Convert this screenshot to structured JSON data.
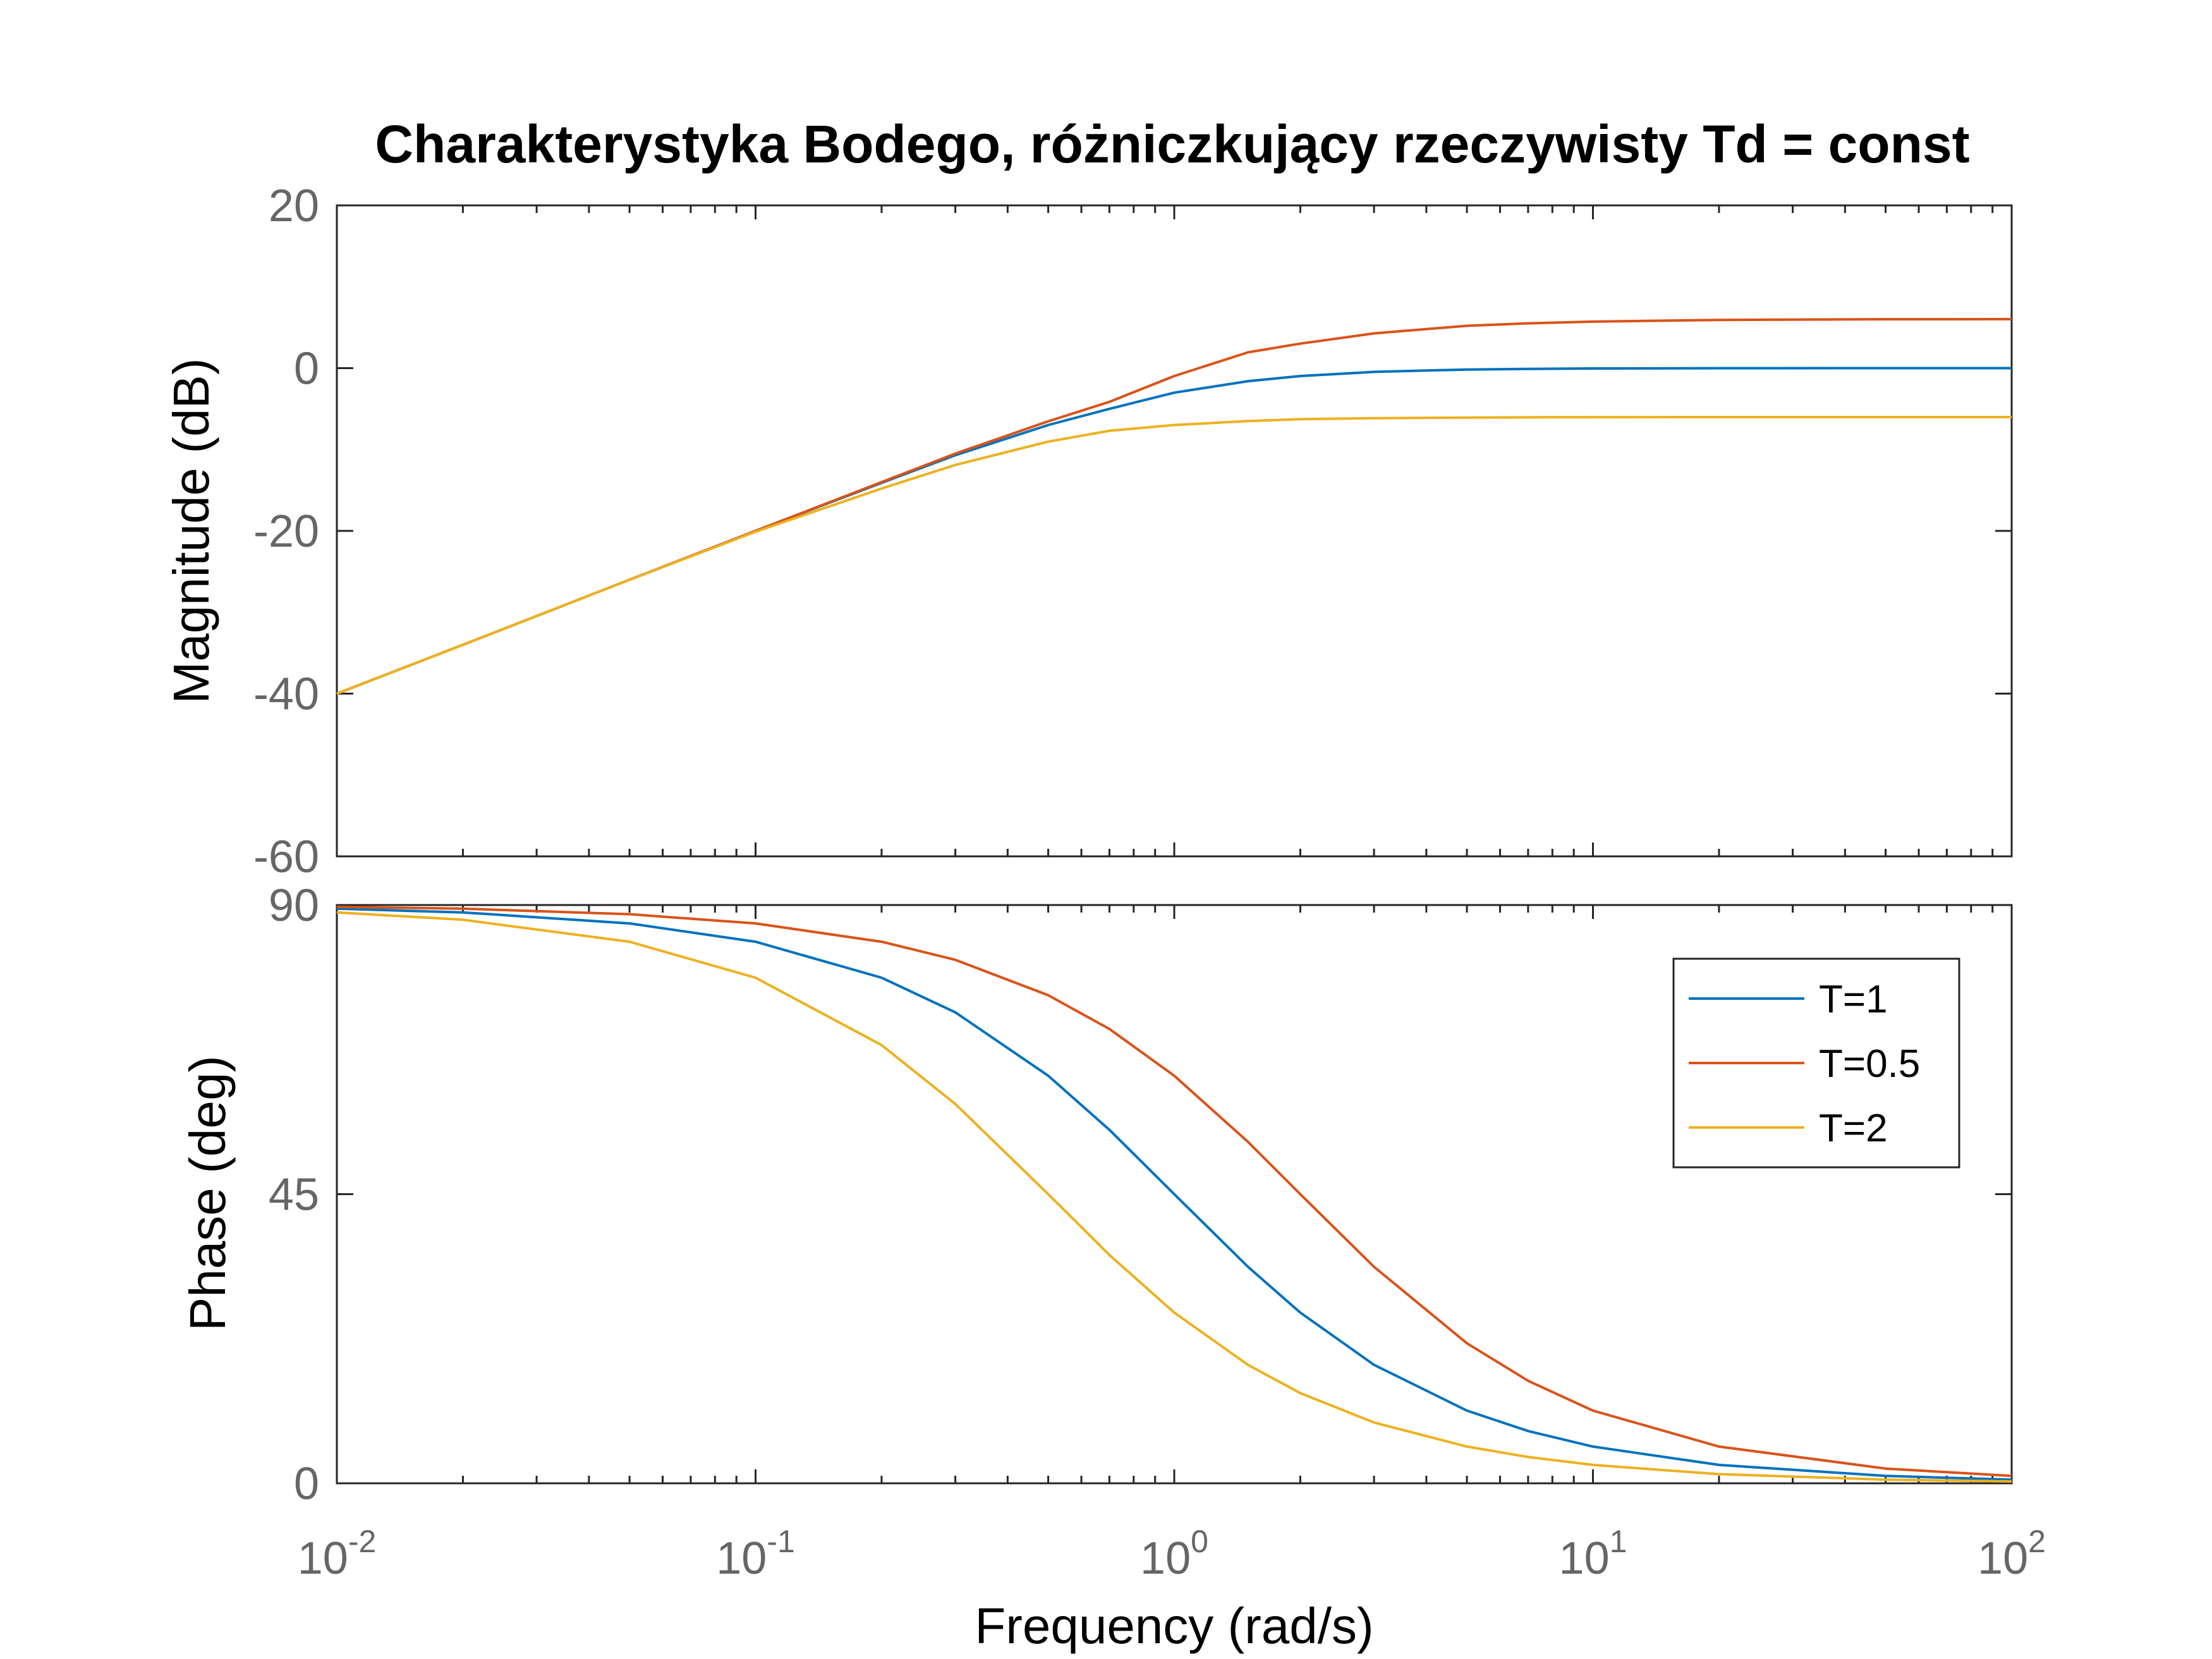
{
  "chart_data": {
    "type": "line",
    "title": "Charakterystyka Bodego, różniczkujący rzeczywisty Td = const",
    "xlabel": "Frequency  (rad/s)",
    "x_scale": "log",
    "xlim": [
      0.01,
      100
    ],
    "x_ticks": [
      {
        "base": "10",
        "exp": "-2"
      },
      {
        "base": "10",
        "exp": "-1"
      },
      {
        "base": "10",
        "exp": "0"
      },
      {
        "base": "10",
        "exp": "1"
      },
      {
        "base": "10",
        "exp": "2"
      }
    ],
    "x": [
      0.01,
      0.02,
      0.05,
      0.1,
      0.2,
      0.3,
      0.5,
      0.7,
      1,
      1.5,
      2,
      3,
      5,
      7,
      10,
      20,
      50,
      100
    ],
    "panels": [
      {
        "name": "magnitude",
        "ylabel": "Magnitude (dB)",
        "ylim": [
          -60,
          20
        ],
        "y_ticks": [
          "20",
          "0",
          "-20",
          "-40",
          "-60"
        ],
        "series": [
          {
            "name": "T=1",
            "color": "#0072BD",
            "values": [
              -40.0,
              -34.0,
              -26.0,
              -20.0,
              -14.1,
              -10.7,
              -6.99,
              -5.0,
              -3.01,
              -1.6,
              -0.97,
              -0.46,
              -0.17,
              -0.09,
              -0.04,
              -0.01,
              0.0,
              0.0
            ]
          },
          {
            "name": "T=0.5",
            "color": "#D95319",
            "values": [
              -40.0,
              -34.0,
              -26.0,
              -20.0,
              -14.0,
              -10.5,
              -6.53,
              -4.14,
              -0.97,
              1.94,
              3.01,
              4.27,
              5.2,
              5.51,
              5.72,
              5.93,
              6.01,
              6.02
            ]
          },
          {
            "name": "T=2",
            "color": "#EDB120",
            "values": [
              -40.0,
              -34.0,
              -26.0,
              -20.1,
              -14.8,
              -11.9,
              -9.03,
              -7.7,
              -6.99,
              -6.51,
              -6.27,
              -6.15,
              -6.07,
              -6.04,
              -6.03,
              -6.02,
              -6.02,
              -6.02
            ]
          }
        ]
      },
      {
        "name": "phase",
        "ylabel": "Phase (deg)",
        "ylim": [
          0,
          90
        ],
        "y_ticks": [
          "90",
          "45",
          "0"
        ],
        "series": [
          {
            "name": "T=1",
            "color": "#0072BD",
            "values": [
              89.43,
              88.85,
              87.14,
              84.29,
              78.69,
              73.3,
              63.43,
              55.01,
              45.0,
              33.69,
              26.57,
              18.43,
              11.31,
              8.13,
              5.71,
              2.86,
              1.15,
              0.57
            ]
          },
          {
            "name": "T=0.5",
            "color": "#D95319",
            "values": [
              89.71,
              89.43,
              88.57,
              87.14,
              84.29,
              81.47,
              75.96,
              70.71,
              63.43,
              53.13,
              45.0,
              33.69,
              21.8,
              15.95,
              11.31,
              5.71,
              2.29,
              1.15
            ]
          },
          {
            "name": "T=2",
            "color": "#EDB120",
            "values": [
              88.85,
              87.71,
              84.29,
              78.69,
              68.2,
              59.04,
              45.0,
              35.54,
              26.57,
              18.43,
              14.04,
              9.46,
              5.71,
              4.09,
              2.86,
              1.43,
              0.57,
              0.29
            ]
          }
        ]
      }
    ],
    "legend": {
      "location": "top-right of phase panel",
      "entries": [
        "T=1",
        "T=0.5",
        "T=2"
      ]
    },
    "grid": false
  }
}
